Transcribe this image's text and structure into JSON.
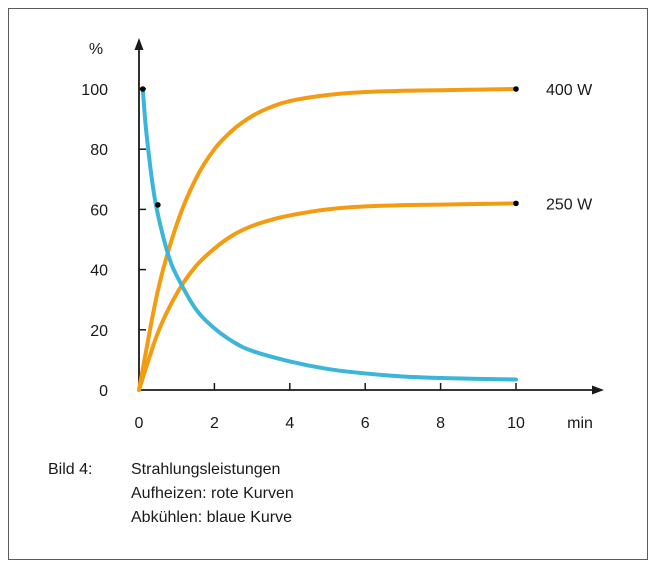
{
  "chart_data": {
    "type": "line",
    "xlabel": "min",
    "ylabel": "%",
    "xlim": [
      0,
      10
    ],
    "ylim": [
      0,
      100
    ],
    "xticks": [
      0,
      2,
      4,
      6,
      8,
      10
    ],
    "yticks": [
      0,
      20,
      40,
      60,
      80,
      100
    ],
    "series": [
      {
        "name": "400 W",
        "color": "#f39c12",
        "x": [
          0,
          0.5,
          1,
          1.5,
          2,
          2.5,
          3,
          3.5,
          4,
          5,
          6,
          7,
          8,
          9,
          10
        ],
        "y": [
          0,
          33,
          55,
          70,
          80,
          86.5,
          91,
          94,
          96,
          98,
          99,
          99.4,
          99.6,
          99.8,
          100
        ]
      },
      {
        "name": "250 W",
        "color": "#f39c12",
        "x": [
          0,
          0.5,
          1,
          1.5,
          2,
          2.5,
          3,
          3.5,
          4,
          5,
          6,
          7,
          8,
          9,
          10
        ],
        "y": [
          0,
          19,
          32,
          41,
          47,
          51.5,
          54.5,
          56.5,
          58,
          60,
          61,
          61.4,
          61.6,
          61.8,
          62
        ]
      },
      {
        "color": "#3bb5d8",
        "x": [
          0.1,
          0.2,
          0.4,
          0.6,
          0.8,
          1,
          1.5,
          2,
          2.5,
          3,
          4,
          5,
          6,
          7,
          8,
          9,
          10
        ],
        "y": [
          100,
          85,
          65,
          53,
          44,
          38,
          27,
          20.5,
          16,
          13,
          9.5,
          7,
          5.5,
          4.5,
          4,
          3.7,
          3.5
        ]
      }
    ],
    "markers": [
      {
        "x": 0.1,
        "y": 100
      },
      {
        "x": 0.5,
        "y": 61.5
      },
      {
        "x": 10,
        "y": 100
      },
      {
        "x": 10,
        "y": 62
      }
    ],
    "legend": "none",
    "grid": false
  },
  "caption": {
    "label": "Bild 4:",
    "line1": "Strahlungsleistungen",
    "line2": "Aufheizen: rote Kurven",
    "line3": "Abkühlen: blaue Kurve"
  }
}
